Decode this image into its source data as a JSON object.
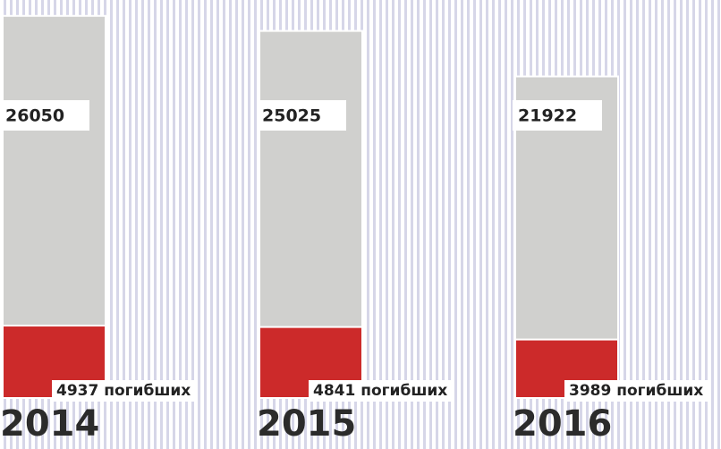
{
  "chart_data": {
    "type": "bar",
    "categories": [
      "2014",
      "2015",
      "2016"
    ],
    "series": [
      {
        "color": "#d0d0ce",
        "values": [
          26050,
          25025,
          21922
        ]
      },
      {
        "color": "#cc2a2a",
        "values": [
          4937,
          4841,
          3989
        ],
        "value_labels": [
          "4937 погибших",
          "4841 погибших",
          "3989 погибших"
        ]
      }
    ]
  }
}
